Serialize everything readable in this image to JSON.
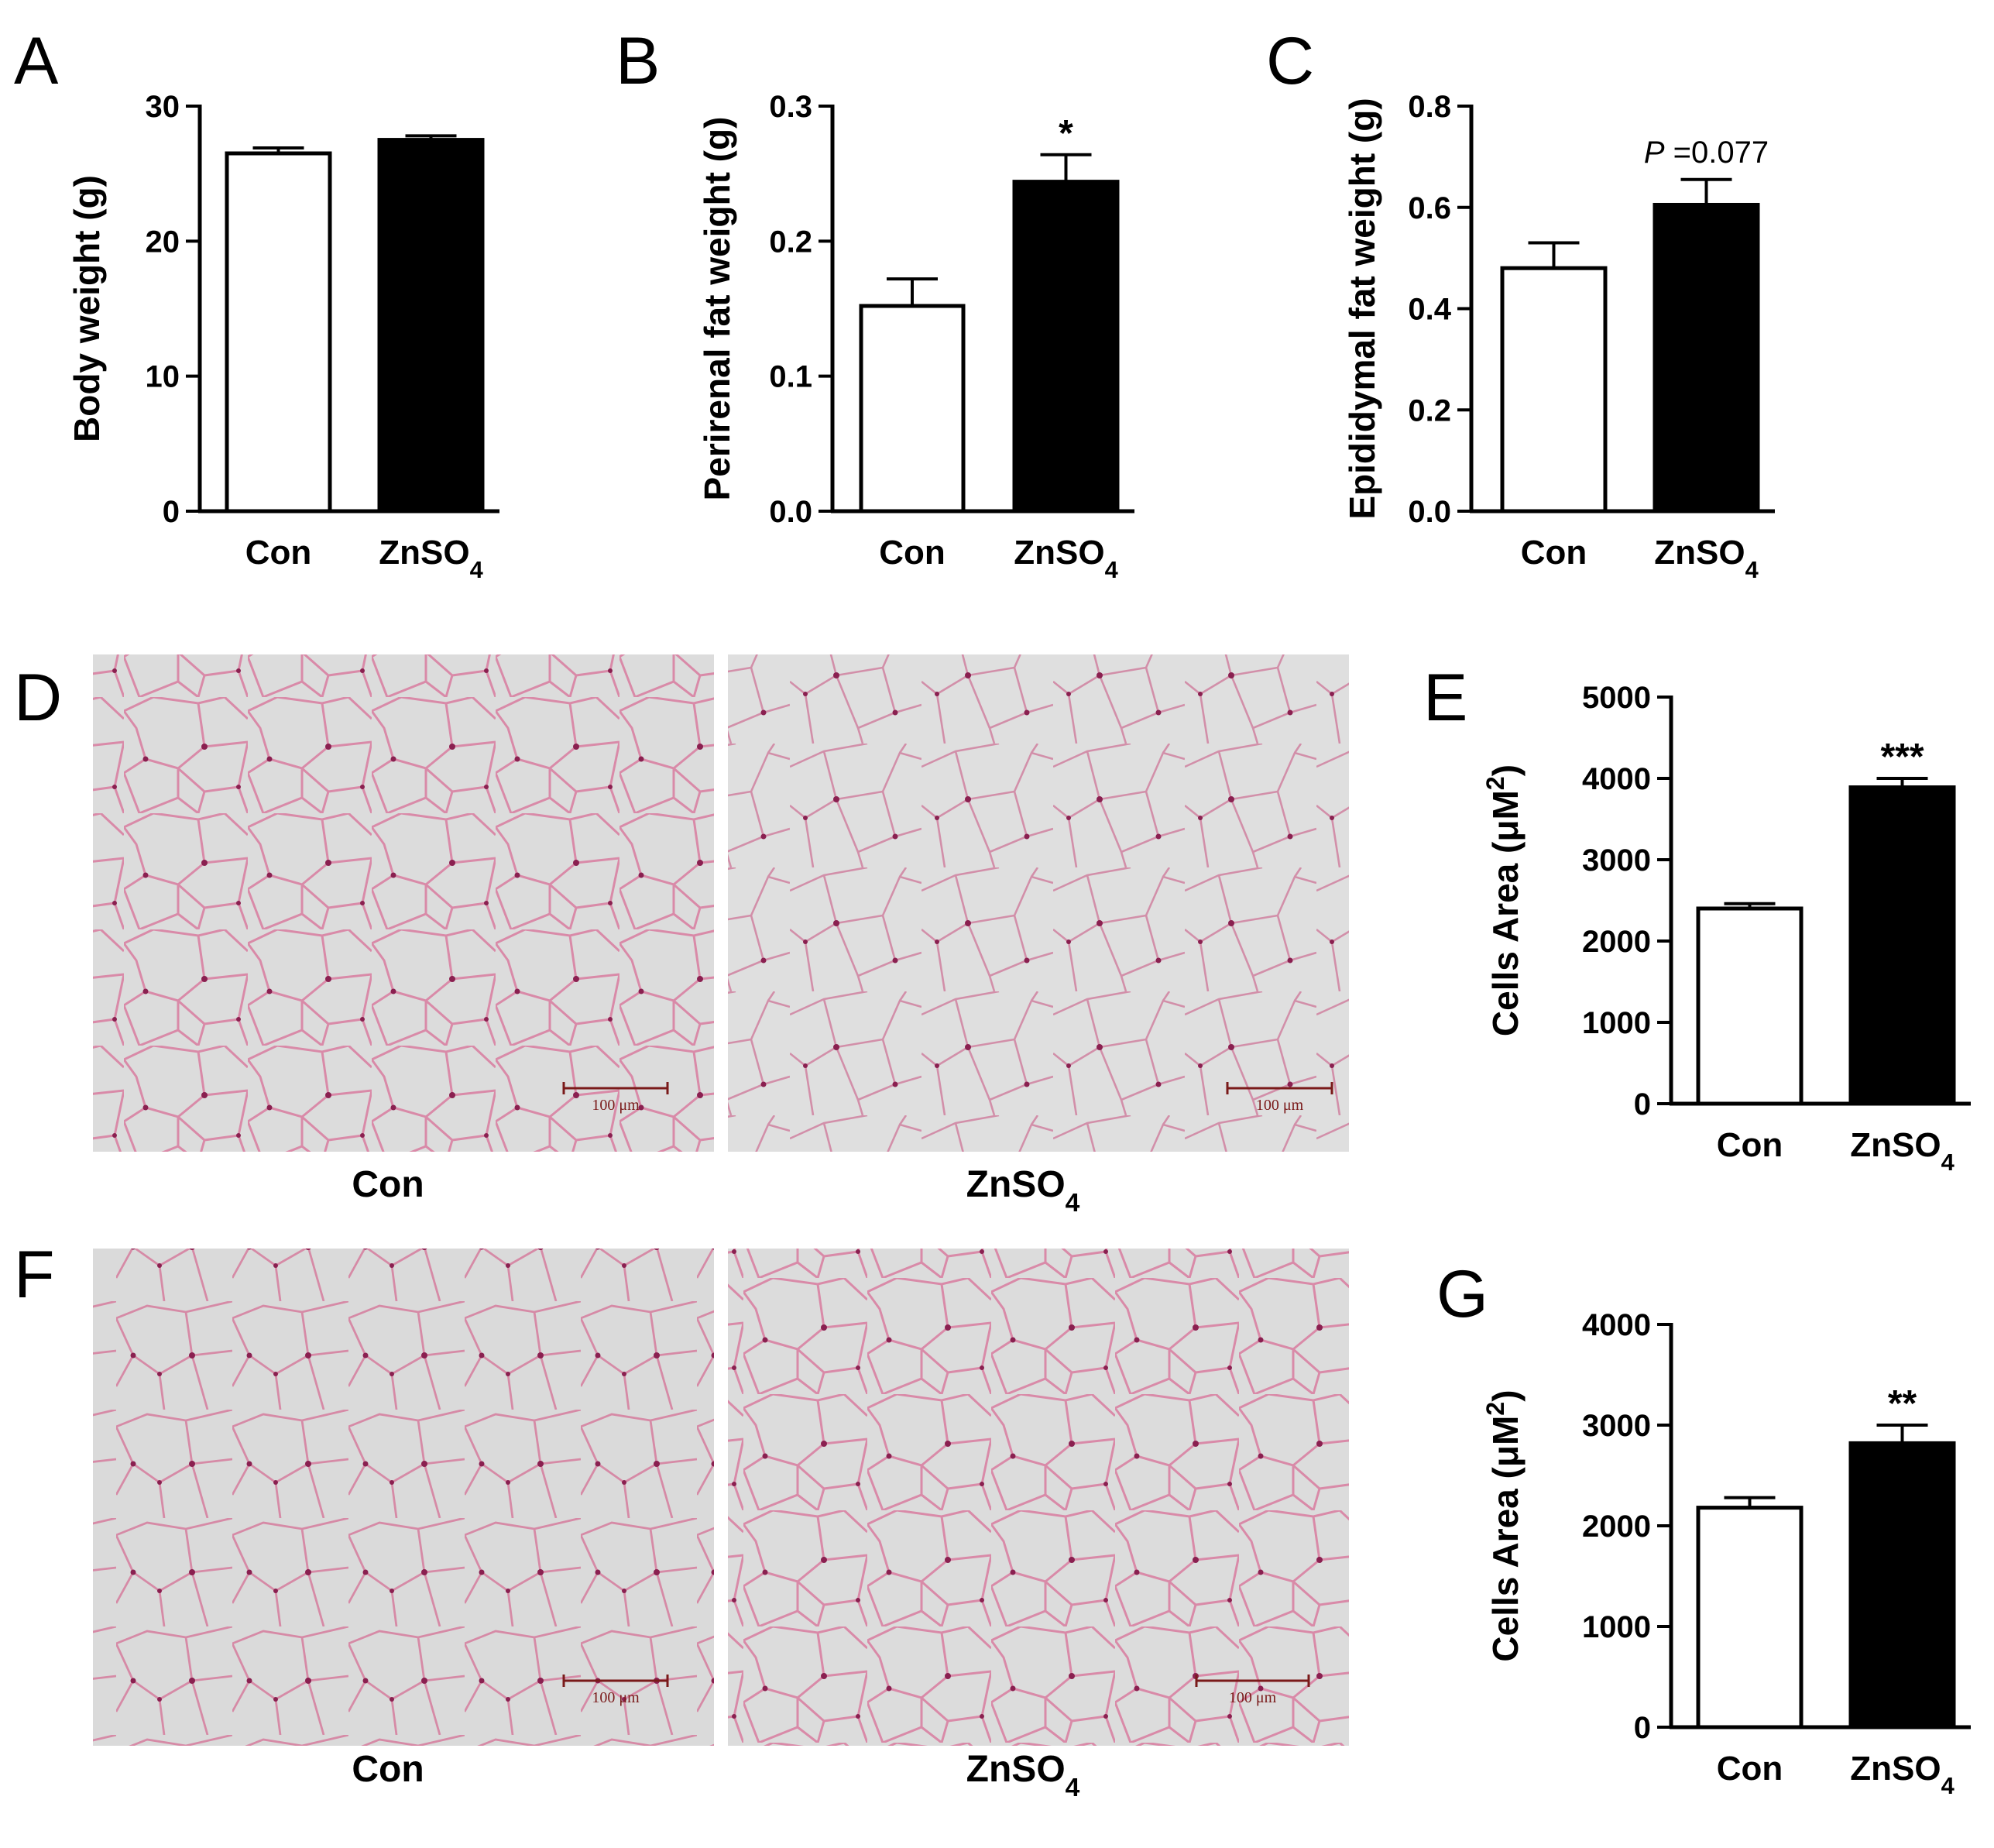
{
  "figure_label": "",
  "colors": {
    "con_fill": "#ffffff",
    "zn_fill": "#000000",
    "axis": "#000000",
    "tissue_bg": "#dcdcdc",
    "membrane": "#d98aa8",
    "nucleus": "#8a2050"
  },
  "chart_data": [
    {
      "panel": "A",
      "type": "bar",
      "categories": [
        "Con",
        "ZnSO4"
      ],
      "values": [
        26.5,
        27.5
      ],
      "errors": [
        0.4,
        0.3
      ],
      "ylabel": "Body weight (g)",
      "ylim": [
        0,
        30
      ],
      "yticks": [
        "0",
        "10",
        "20",
        "30"
      ],
      "annotation": ""
    },
    {
      "panel": "B",
      "type": "bar",
      "categories": [
        "Con",
        "ZnSO4"
      ],
      "values": [
        0.152,
        0.244
      ],
      "errors": [
        0.02,
        0.02
      ],
      "ylabel": "Perirenal fat weight (g)",
      "ylim": [
        0,
        0.3
      ],
      "yticks": [
        "0.0",
        "0.1",
        "0.2",
        "0.3"
      ],
      "annotation": "*"
    },
    {
      "panel": "C",
      "type": "bar",
      "categories": [
        "Con",
        "ZnSO4"
      ],
      "values": [
        0.48,
        0.605
      ],
      "errors": [
        0.05,
        0.05
      ],
      "ylabel": "Epididymal fat weight (g)",
      "ylim": [
        0,
        0.8
      ],
      "yticks": [
        "0.0",
        "0.2",
        "0.4",
        "0.6",
        "0.8"
      ],
      "annotation": "P =0.077"
    },
    {
      "panel": "E",
      "type": "bar",
      "categories": [
        "Con",
        "ZnSO4"
      ],
      "values": [
        2400,
        3890
      ],
      "errors": [
        60,
        110
      ],
      "ylabel": "Cells Area (μM²)",
      "ylim": [
        0,
        5000
      ],
      "yticks": [
        "0",
        "1000",
        "2000",
        "3000",
        "4000",
        "5000"
      ],
      "annotation": "***"
    },
    {
      "panel": "G",
      "type": "bar",
      "categories": [
        "Con",
        "ZnSO4"
      ],
      "values": [
        2180,
        2820
      ],
      "errors": [
        100,
        180
      ],
      "ylabel": "Cells Area (μM²)",
      "ylim": [
        0,
        4000
      ],
      "yticks": [
        "0",
        "1000",
        "2000",
        "3000",
        "4000"
      ],
      "annotation": "**"
    }
  ],
  "images": {
    "D": {
      "letter": "D",
      "left_label": "Con",
      "right_label": "ZnSO4",
      "scale_bar": "100 μm"
    },
    "F": {
      "letter": "F",
      "left_label": "Con",
      "right_label": "ZnSO4",
      "scale_bar": "100 μm"
    }
  }
}
